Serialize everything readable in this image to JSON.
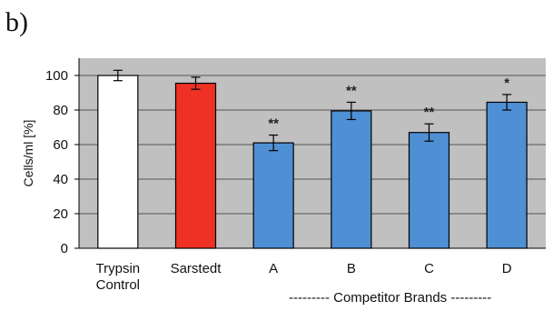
{
  "panel_label": "b)",
  "chart_data": {
    "type": "bar",
    "categories": [
      [
        "Trypsin",
        "Control"
      ],
      [
        "Sarstedt"
      ],
      [
        "A"
      ],
      [
        "B"
      ],
      [
        "C"
      ],
      [
        "D"
      ]
    ],
    "values": [
      100,
      95.5,
      61,
      79.5,
      67,
      84.5
    ],
    "errors": [
      3,
      3.5,
      4.5,
      5,
      5,
      4.5
    ],
    "significance": [
      "",
      "",
      "**",
      "**",
      "**",
      "*"
    ],
    "bar_colors": [
      "#ffffff",
      "#ee3124",
      "#4f8fd4",
      "#4f8fd4",
      "#4f8fd4",
      "#4f8fd4"
    ],
    "plot_bg": "#c0c0c0",
    "grid": true,
    "ylabel": "Cells/ml [%]",
    "xlabel": "",
    "ylim": [
      0,
      100
    ],
    "yticks": [
      0,
      20,
      40,
      60,
      80,
      100
    ],
    "group_label": "--------- Competitor Brands ---------"
  }
}
